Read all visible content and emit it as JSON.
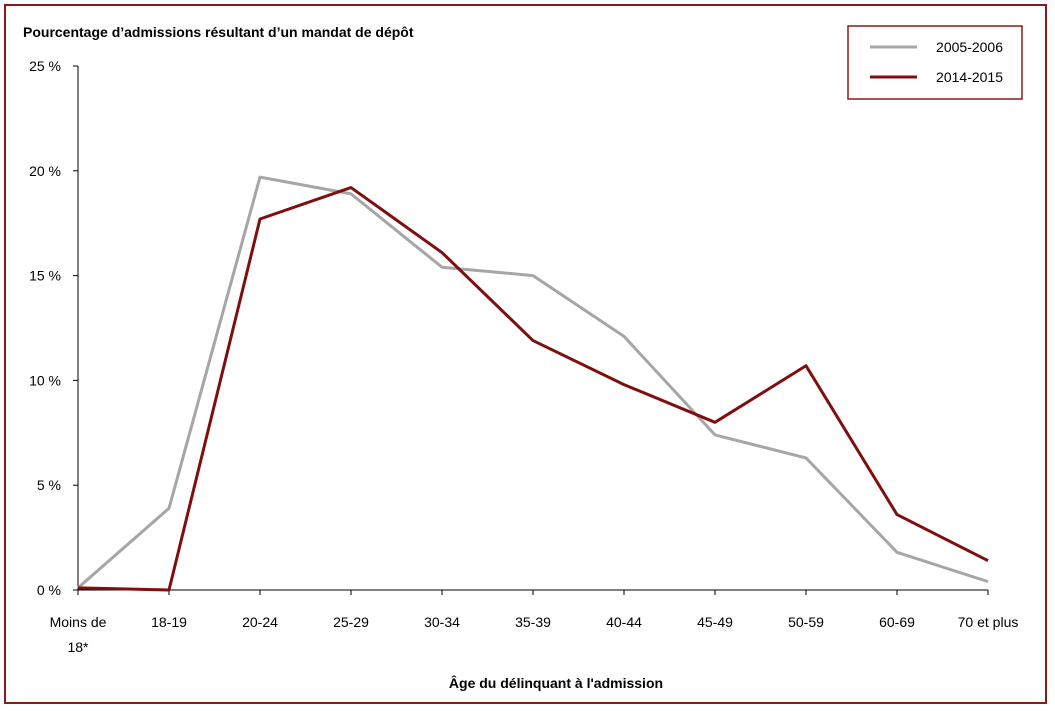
{
  "chart_data": {
    "type": "line",
    "title": "Pourcentage d’admissions résultant d’un mandat de dépôt",
    "xlabel": "Âge du délinquant à l'admission",
    "ylabel": "",
    "categories": [
      "Moins de 18*",
      "18-19",
      "20-24",
      "25-29",
      "30-34",
      "35-39",
      "40-44",
      "45-49",
      "50-59",
      "60-69",
      "70 et plus"
    ],
    "category_lines": [
      [
        "Moins de",
        "18*"
      ],
      [
        "18-19"
      ],
      [
        "20-24"
      ],
      [
        "25-29"
      ],
      [
        "30-34"
      ],
      [
        "35-39"
      ],
      [
        "40-44"
      ],
      [
        "45-49"
      ],
      [
        "50-59"
      ],
      [
        "60-69"
      ],
      [
        "70 et plus"
      ]
    ],
    "ylim": [
      0,
      25
    ],
    "yticks": [
      0,
      5,
      10,
      15,
      20,
      25
    ],
    "ytick_labels": [
      "0 %",
      "5 %",
      "10 %",
      "15 %",
      "20 %",
      "25 %"
    ],
    "grid": false,
    "legend_position": "top-right",
    "series": [
      {
        "name": "2005-2006",
        "color": "#a6a6a6",
        "values": [
          0.1,
          3.9,
          19.7,
          18.9,
          15.4,
          15.0,
          12.1,
          7.4,
          6.3,
          1.8,
          0.4
        ]
      },
      {
        "name": "2014-2015",
        "color": "#7f0f0f",
        "values": [
          0.1,
          0.0,
          17.7,
          19.2,
          16.1,
          11.9,
          9.8,
          8.0,
          10.7,
          3.6,
          1.4
        ]
      }
    ]
  }
}
